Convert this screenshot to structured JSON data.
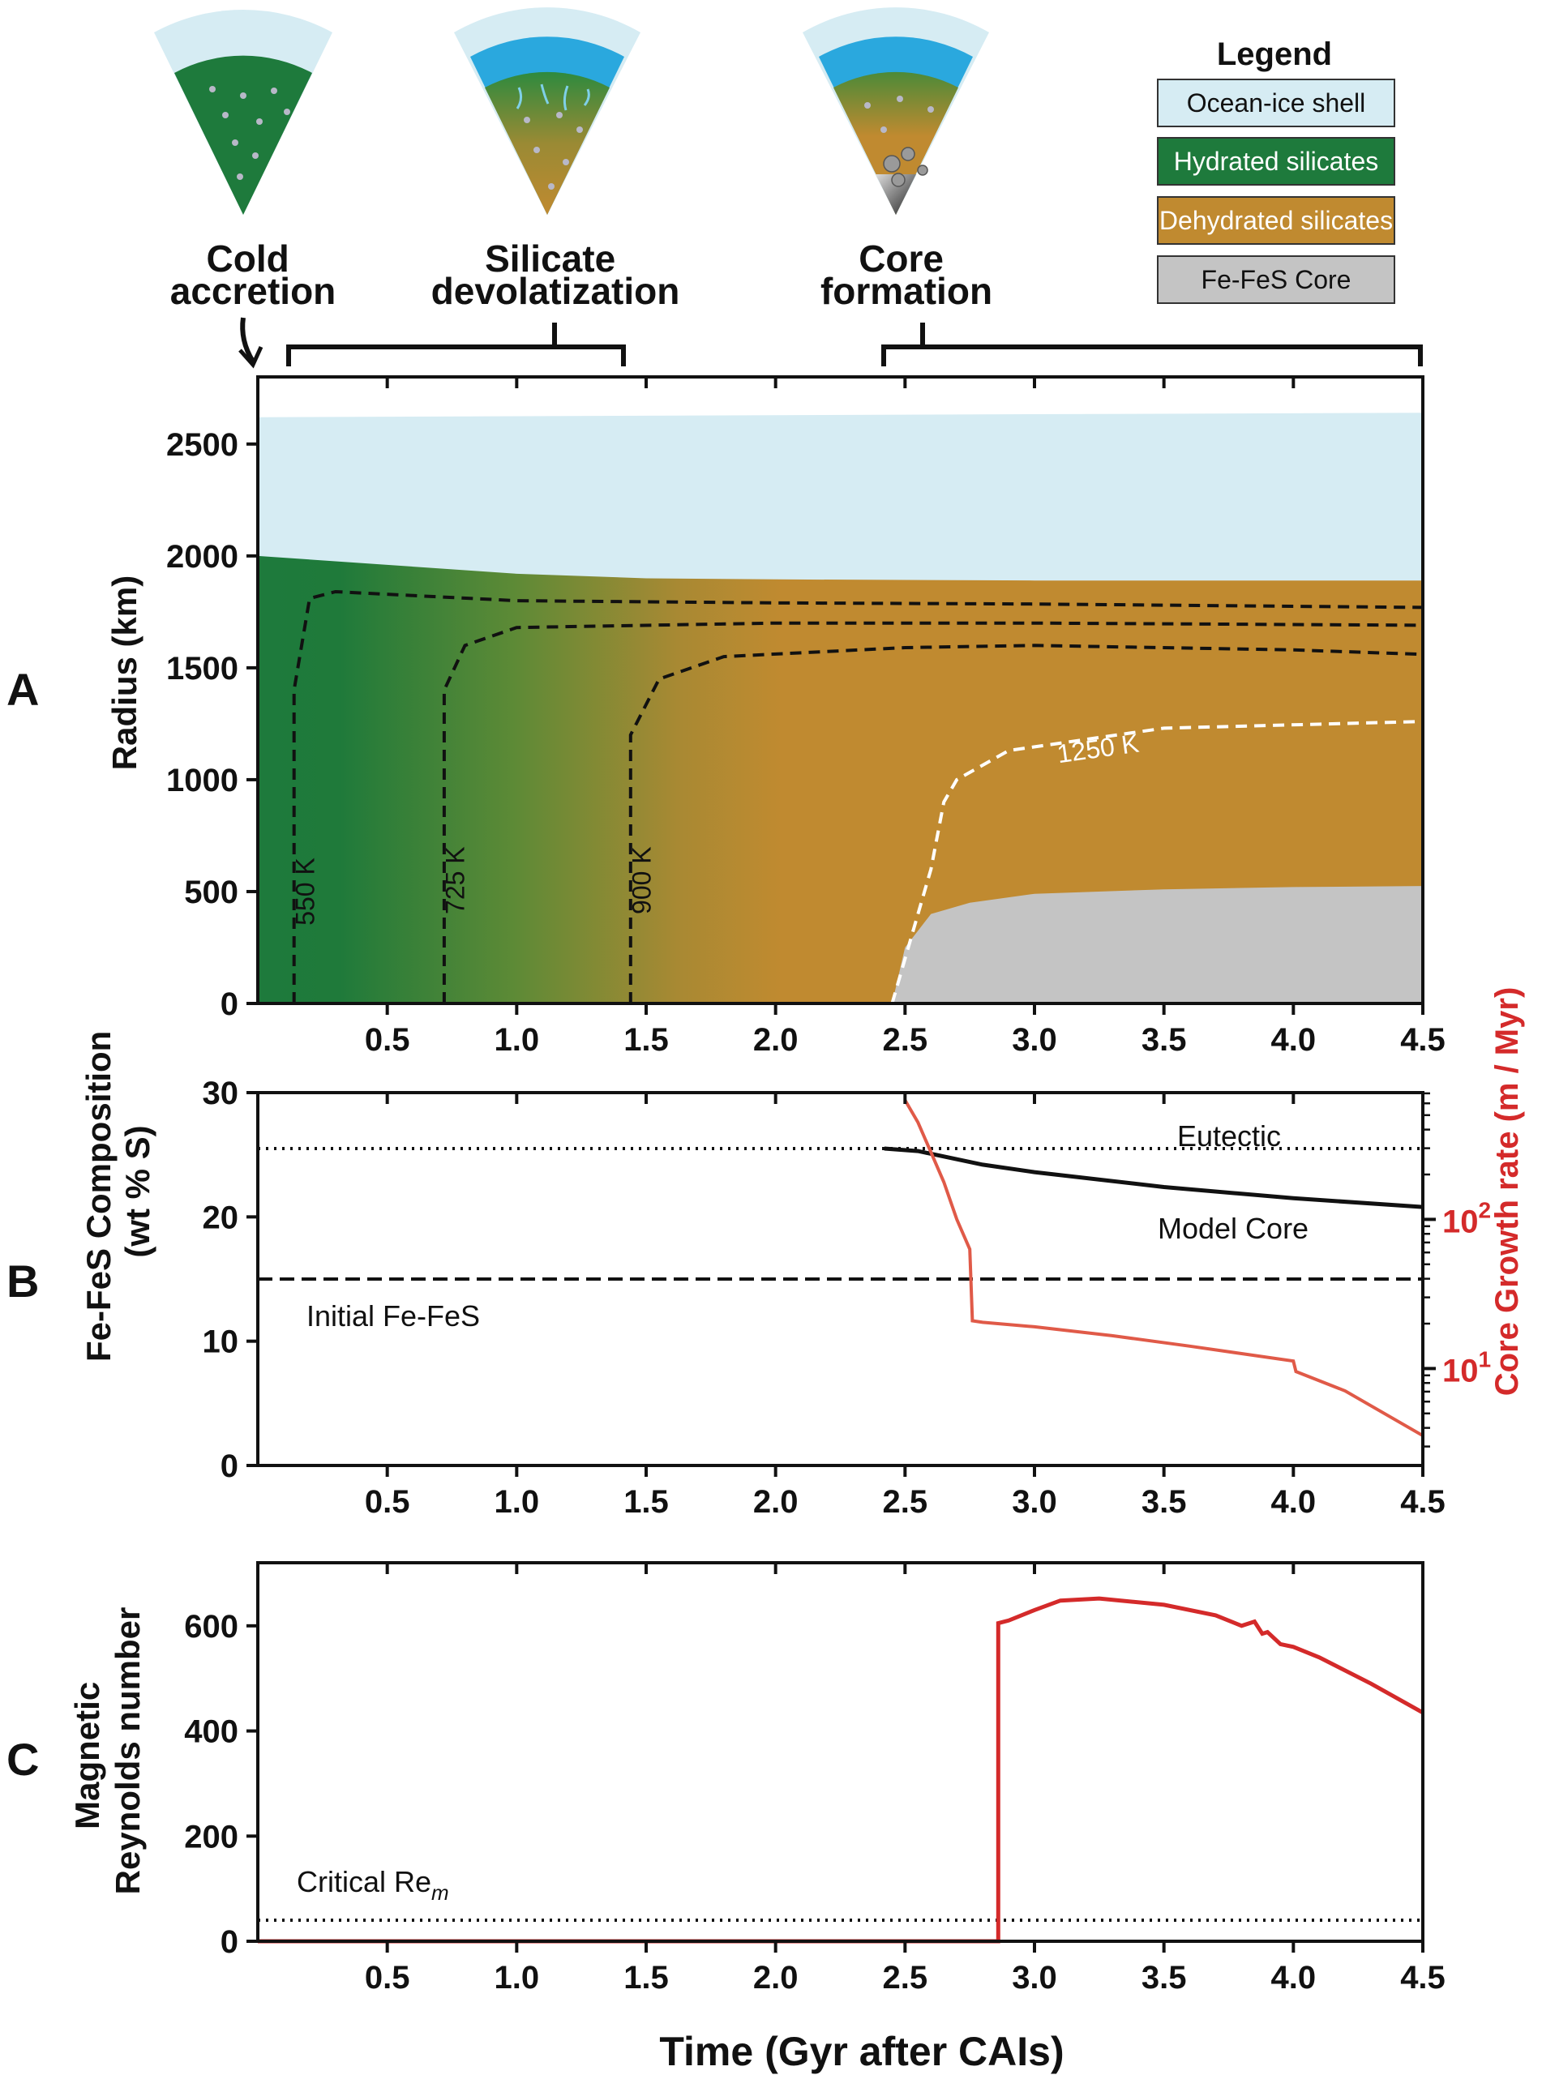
{
  "colors": {
    "ocean_ice": "#d6ecf3",
    "hydrated": "#1e7a3c",
    "dehydrated": "#c08a30",
    "core": "#c4c4c4",
    "red_curve": "#d42a2a",
    "growth_curve": "#e05a48",
    "ocean_blue": "#2aa8de"
  },
  "stages": {
    "cold_accretion": [
      "Cold",
      "accretion"
    ],
    "silicate_devolatization": [
      "Silicate",
      "devolatization"
    ],
    "core_formation": [
      "Core",
      "formation"
    ]
  },
  "legend": {
    "title": "Legend",
    "items": [
      {
        "label": "Ocean-ice shell",
        "color": "#d6ecf3",
        "text_color": "#111111"
      },
      {
        "label": "Hydrated silicates",
        "color": "#1e7a3c",
        "text_color": "#ffffff"
      },
      {
        "label": "Dehydrated silicates",
        "color": "#c08a30",
        "text_color": "#ffffff"
      },
      {
        "label": "Fe-FeS Core",
        "color": "#c4c4c4",
        "text_color": "#111111"
      }
    ]
  },
  "panel_labels": [
    "A",
    "B",
    "C"
  ],
  "chart_data": [
    {
      "panel": "A",
      "type": "area",
      "ylabel": "Radius (km)",
      "xlim": [
        0,
        4.5
      ],
      "ylim": [
        0,
        2800
      ],
      "xticks": [
        "0.5",
        "1.0",
        "1.5",
        "2.0",
        "2.5",
        "3.0",
        "3.5",
        "4.0",
        "4.5"
      ],
      "yticks": [
        "0",
        "500",
        "1000",
        "1500",
        "2000",
        "2500"
      ],
      "layers": {
        "ocean_ice_top": {
          "x": [
            0,
            4.5
          ],
          "y": [
            2620,
            2640
          ]
        },
        "silicate_top": {
          "x": [
            0,
            0.5,
            1.0,
            1.5,
            2.0,
            3.0,
            4.5
          ],
          "y": [
            2000,
            1960,
            1920,
            1900,
            1895,
            1890,
            1890
          ]
        },
        "core_top": {
          "x": [
            2.45,
            2.5,
            2.6,
            2.75,
            3.0,
            3.5,
            4.0,
            4.5
          ],
          "y": [
            0,
            250,
            400,
            450,
            490,
            510,
            520,
            525
          ]
        }
      },
      "isotherms": [
        {
          "label": "550 K",
          "x": [
            0.14,
            0.14,
            0.2,
            0.3,
            1.0,
            2.0,
            3.0,
            4.5
          ],
          "y": [
            0,
            1400,
            1810,
            1840,
            1800,
            1790,
            1785,
            1770
          ]
        },
        {
          "label": "725 K",
          "x": [
            0.72,
            0.72,
            0.8,
            1.0,
            2.0,
            3.0,
            4.5
          ],
          "y": [
            0,
            1400,
            1600,
            1680,
            1700,
            1700,
            1690
          ]
        },
        {
          "label": "900 K",
          "x": [
            1.44,
            1.44,
            1.55,
            1.8,
            2.5,
            3.0,
            4.0,
            4.5
          ],
          "y": [
            0,
            1200,
            1450,
            1550,
            1590,
            1600,
            1580,
            1560
          ]
        },
        {
          "label": "1250 K",
          "x": [
            2.45,
            2.55,
            2.6,
            2.65,
            2.7,
            2.9,
            3.5,
            4.5
          ],
          "y": [
            0,
            400,
            600,
            900,
            1000,
            1130,
            1230,
            1260
          ]
        }
      ]
    },
    {
      "panel": "B",
      "type": "line",
      "ylabel": [
        "Fe-FeS Composition",
        "(wt % S)"
      ],
      "y2label": "Core Growth rate (m / Myr)",
      "xlim": [
        0,
        4.5
      ],
      "ylim": [
        0,
        30
      ],
      "y2lim_log10": [
        0.35,
        2.85
      ],
      "xticks": [
        "0.5",
        "1.0",
        "1.5",
        "2.0",
        "2.5",
        "3.0",
        "3.5",
        "4.0",
        "4.5"
      ],
      "yticks": [
        "0",
        "10",
        "20",
        "30"
      ],
      "y2ticks": [
        {
          "base": "10",
          "exp": "2",
          "log10": 2
        },
        {
          "base": "10",
          "exp": "1",
          "log10": 1
        }
      ],
      "annotations": {
        "eutectic": "Eutectic",
        "model_core": "Model Core",
        "initial": "Initial Fe-FeS"
      },
      "eutectic_level": 25.5,
      "initial_level": 15,
      "model_core": {
        "x": [
          2.42,
          2.55,
          2.8,
          3.0,
          3.5,
          4.0,
          4.5
        ],
        "y": [
          25.5,
          25.3,
          24.2,
          23.6,
          22.4,
          21.5,
          20.8
        ]
      },
      "growth_rate_log10": {
        "x": [
          2.5,
          2.55,
          2.6,
          2.65,
          2.7,
          2.75,
          2.76,
          2.8,
          3.0,
          3.3,
          3.6,
          3.8,
          4.0,
          4.01,
          4.2,
          4.5
        ],
        "y": [
          2.8,
          2.65,
          2.45,
          2.25,
          2.0,
          1.8,
          1.32,
          1.31,
          1.28,
          1.22,
          1.15,
          1.1,
          1.05,
          0.98,
          0.85,
          0.55
        ]
      }
    },
    {
      "panel": "C",
      "type": "line",
      "ylabel": [
        "Magnetic",
        "Reynolds number"
      ],
      "xlabel": "Time (Gyr after CAIs)",
      "xlim": [
        0,
        4.5
      ],
      "ylim": [
        0,
        720
      ],
      "xticks": [
        "0.5",
        "1.0",
        "1.5",
        "2.0",
        "2.5",
        "3.0",
        "3.5",
        "4.0",
        "4.5"
      ],
      "yticks": [
        "0",
        "200",
        "400",
        "600"
      ],
      "critical_label": "Critical Re",
      "critical_sub": "m",
      "critical_level": 40,
      "series": [
        {
          "x": [
            0,
            2.86,
            2.86,
            2.9,
            3.0,
            3.1,
            3.25,
            3.5,
            3.7,
            3.8,
            3.85,
            3.88,
            3.9,
            3.95,
            4.0,
            4.1,
            4.3,
            4.5
          ],
          "y": [
            0,
            0,
            605,
            610,
            630,
            648,
            652,
            640,
            620,
            600,
            608,
            585,
            588,
            565,
            560,
            540,
            490,
            435
          ]
        }
      ]
    }
  ]
}
